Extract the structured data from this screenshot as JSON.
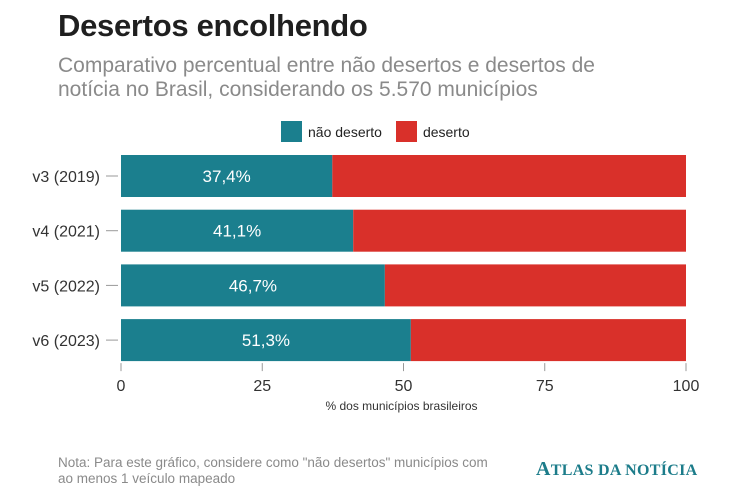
{
  "title": "Desertos encolhendo",
  "subtitle": "Comparativo percentual entre não desertos e desertos de notícia no Brasil, considerando os 5.570 municípios",
  "note": "Nota: Para este gráfico, considere como \"não desertos\" municípios com ao menos 1 veículo mapeado",
  "brand": {
    "first": "A",
    "rest": "TLAS DA NOTÍCIA"
  },
  "colors": {
    "nao_deserto": "#1b7f8e",
    "deserto": "#d9302a"
  },
  "chart_data": {
    "type": "bar",
    "orientation": "horizontal",
    "stacked": true,
    "categories": [
      "v3 (2019)",
      "v4 (2021)",
      "v5 (2022)",
      "v6 (2023)"
    ],
    "series": [
      {
        "name": "não deserto",
        "values": [
          37.4,
          41.1,
          46.7,
          51.3
        ],
        "labels": [
          "37,4%",
          "41,1%",
          "46,7%",
          "51,3%"
        ]
      },
      {
        "name": "deserto",
        "values": [
          62.6,
          58.9,
          53.3,
          48.7
        ]
      }
    ],
    "xlabel": "% dos municípios brasileiros",
    "xlim": [
      0,
      100
    ],
    "xticks": [
      0,
      25,
      50,
      75,
      100
    ],
    "grid": false,
    "legend_position": "top"
  }
}
